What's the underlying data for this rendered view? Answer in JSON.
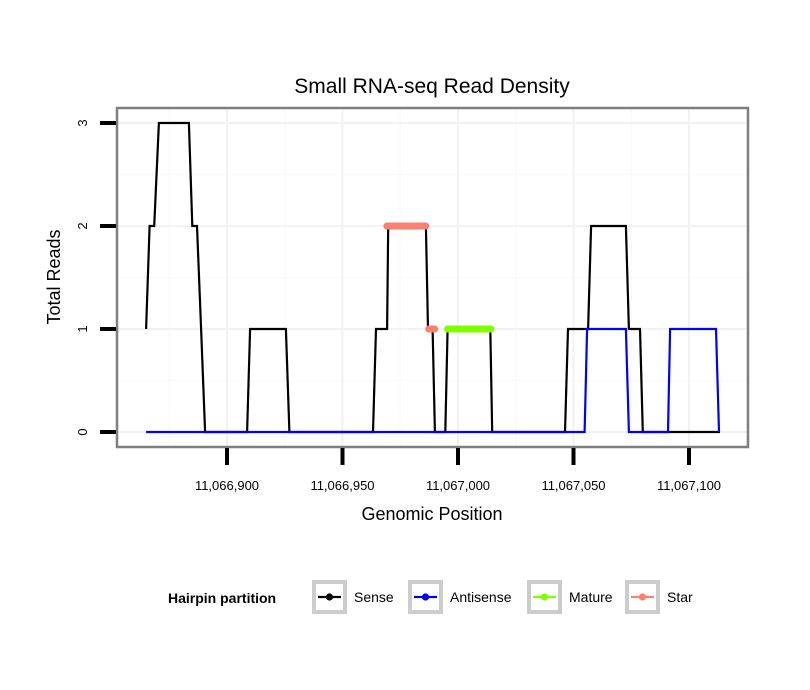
{
  "chart_data": {
    "type": "line",
    "title": "Small RNA-seq Read Density",
    "xlabel": "Genomic Position",
    "ylabel": "Total Reads",
    "xlim": [
      11066865,
      11067114
    ],
    "ylim": [
      0,
      3
    ],
    "grid": true,
    "x_ticks": [
      11066900,
      11066950,
      11067000,
      11067050,
      11067100
    ],
    "x_tick_labels": [
      "11,066,900",
      "11,066,950",
      "11,067,000",
      "11,067,050",
      "11,067,100"
    ],
    "y_ticks": [
      0,
      1,
      2,
      3
    ],
    "y_tick_labels": [
      "0",
      "1",
      "2",
      "3"
    ],
    "legend": {
      "title": "Hairpin partition",
      "position": "bottom",
      "entries": [
        {
          "label": "Sense",
          "color": "#000000"
        },
        {
          "label": "Antisense",
          "color": "#0000ff"
        },
        {
          "label": "Mature",
          "color": "#7fff00"
        },
        {
          "label": "Star",
          "color": "#fa8072"
        }
      ]
    },
    "series": [
      {
        "name": "Sense",
        "color": "#000000",
        "points": [
          [
            11066865,
            1
          ],
          [
            11066866.5,
            2
          ],
          [
            11066868.5,
            2
          ],
          [
            11066870.5,
            3
          ],
          [
            11066883.5,
            3
          ],
          [
            11066885,
            2
          ],
          [
            11066887,
            2
          ],
          [
            11066888.8,
            1
          ],
          [
            11066890.5,
            0
          ],
          [
            11066908.7,
            0
          ],
          [
            11066910,
            1
          ],
          [
            11066925.5,
            1
          ],
          [
            11066927,
            0
          ],
          [
            11066963.2,
            0
          ],
          [
            11066964.5,
            1
          ],
          [
            11066969.3,
            1
          ],
          [
            11066969.8,
            2
          ],
          [
            11066986.1,
            2
          ],
          [
            11066987,
            1
          ],
          [
            11066989,
            1
          ],
          [
            11066990,
            0
          ],
          [
            11066994.5,
            0
          ],
          [
            11066995.5,
            1
          ],
          [
            11067014,
            1
          ],
          [
            11067014.8,
            0
          ],
          [
            11067046.3,
            0
          ],
          [
            11067047.6,
            1
          ],
          [
            11067056.3,
            1
          ],
          [
            11067057.6,
            2
          ],
          [
            11067072.7,
            2
          ],
          [
            11067074,
            1
          ],
          [
            11067078.8,
            1
          ],
          [
            11067080,
            0
          ],
          [
            11067113.4,
            0
          ]
        ]
      },
      {
        "name": "Antisense",
        "color": "#0000ff",
        "points": [
          [
            11066865,
            0
          ],
          [
            11067054.8,
            0
          ],
          [
            11067055.9,
            1
          ],
          [
            11067072.7,
            1
          ],
          [
            11067074,
            0
          ],
          [
            11067090.9,
            0
          ],
          [
            11067091.8,
            1
          ],
          [
            11067111.7,
            1
          ],
          [
            11067113,
            0
          ]
        ]
      },
      {
        "name": "Mature",
        "color": "#7fff00",
        "points": [
          [
            11066995.5,
            1
          ],
          [
            11067014.3,
            1
          ]
        ]
      },
      {
        "name": "Star",
        "color": "#fa8072",
        "segments": [
          [
            [
              11066969.2,
              2
            ],
            [
              11066986.0,
              2
            ]
          ],
          [
            [
              11066987.3,
              1
            ],
            [
              11066989.9,
              1
            ]
          ]
        ]
      }
    ]
  }
}
